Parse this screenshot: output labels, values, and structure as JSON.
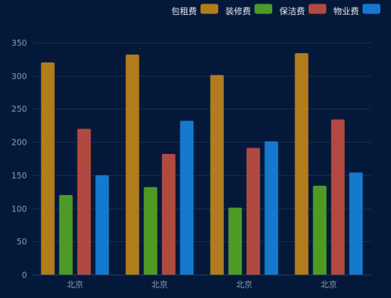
{
  "chart_data": {
    "type": "bar",
    "categories": [
      "北京",
      "北京",
      "北京",
      "北京"
    ],
    "series": [
      {
        "name": "包租费",
        "color": "#b07c1e",
        "values": [
          320,
          332,
          301,
          334
        ]
      },
      {
        "name": "装修费",
        "color": "#4e9a26",
        "values": [
          120,
          132,
          101,
          134
        ]
      },
      {
        "name": "保洁费",
        "color": "#b04a40",
        "values": [
          220,
          182,
          191,
          234
        ]
      },
      {
        "name": "物业费",
        "color": "#1579cd",
        "values": [
          150,
          232,
          201,
          154
        ]
      }
    ],
    "ylim": [
      0,
      350
    ],
    "yticks": [
      0,
      50,
      100,
      150,
      200,
      250,
      300,
      350
    ],
    "grid": true,
    "legend": "top-right"
  }
}
